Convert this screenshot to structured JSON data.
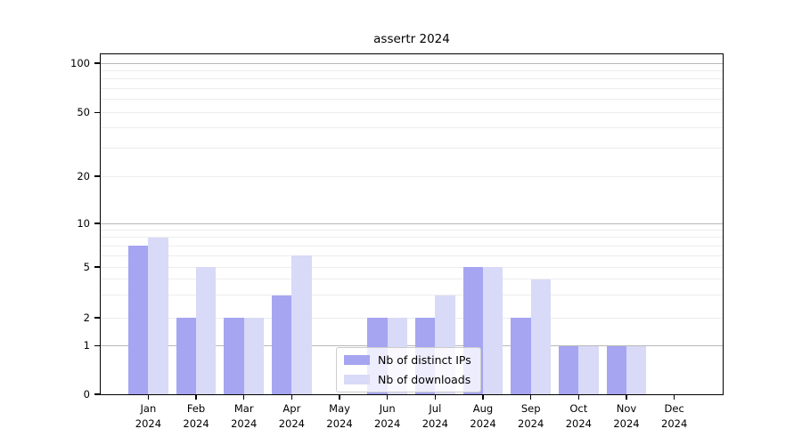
{
  "chart_data": {
    "type": "bar",
    "title": "assertr 2024",
    "year_label": "2024",
    "categories": [
      "Jan",
      "Feb",
      "Mar",
      "Apr",
      "May",
      "Jun",
      "Jul",
      "Aug",
      "Sep",
      "Oct",
      "Nov",
      "Dec"
    ],
    "series": [
      {
        "name": "Nb of distinct IPs",
        "color": "#a5a5f2",
        "values": [
          7,
          2,
          2,
          3,
          0,
          2,
          2,
          5,
          2,
          1,
          1,
          0
        ]
      },
      {
        "name": "Nb of downloads",
        "color": "#d9d9f8",
        "values": [
          8,
          5,
          2,
          6,
          0,
          2,
          3,
          5,
          4,
          1,
          1,
          0
        ]
      }
    ],
    "y_axis": {
      "scale": "log-like with zero baseline",
      "tick_values": [
        0,
        1,
        2,
        5,
        10,
        20,
        50,
        100
      ],
      "tick_labels": [
        "0",
        "1",
        "2",
        "5",
        "10",
        "20",
        "50",
        "100"
      ],
      "range": [
        0,
        100
      ]
    },
    "x_axis": {
      "tick_label_format": "month newline year"
    },
    "legend": {
      "position": "lower center-left inside plot",
      "entries": [
        "Nb of distinct IPs",
        "Nb of downloads"
      ]
    },
    "grid": {
      "on": true,
      "major_values": [
        1,
        10,
        100
      ],
      "minor_values": [
        2,
        3,
        4,
        5,
        6,
        7,
        8,
        9,
        20,
        30,
        40,
        50,
        60,
        70,
        80,
        90
      ],
      "major_color": "#b8b8b8",
      "minor_color": "#ededed"
    },
    "colors": {
      "background": "#ffffff",
      "axis": "#000000",
      "bar_distinct_ips": "#a5a5f2",
      "bar_downloads": "#d9d9f8",
      "legend_border": "#cccccc"
    }
  }
}
